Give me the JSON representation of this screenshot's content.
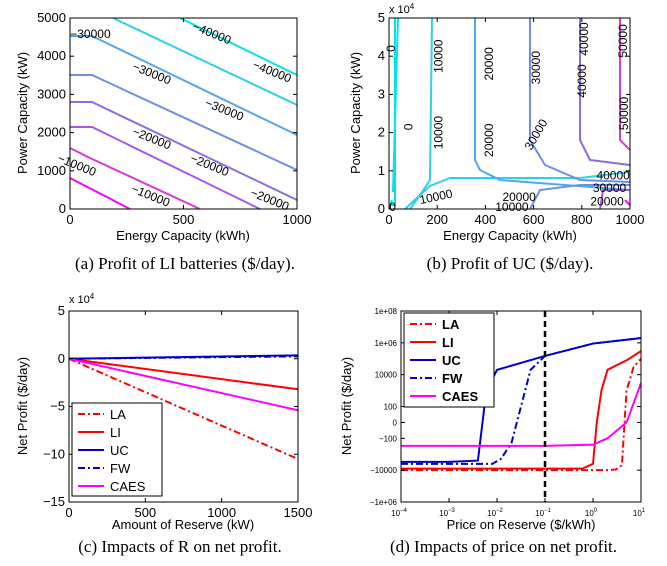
{
  "captions": [
    "(a)  Profit of LI batteries ($/day).",
    "(b)  Profit of UC ($/day).",
    "(c)  Impacts of R on net profit.",
    "(d)  Impacts of price on net profit."
  ],
  "chart_data": [
    {
      "type": "contour",
      "title": "",
      "xlabel": "Energy Capacity (kWh)",
      "ylabel": "Power Capacity (kW)",
      "xlim": [
        0,
        1000
      ],
      "ylim": [
        0,
        5000
      ],
      "xticks": [
        "0",
        "500",
        "1000"
      ],
      "yticks": [
        "0",
        "1000",
        "2000",
        "3000",
        "4000",
        "5000"
      ],
      "contour_labels": [
        {
          "text": "−10000",
          "x": 30,
          "y": 1150,
          "rot": 22
        },
        {
          "text": "−10000",
          "x": 355,
          "y": 350,
          "rot": 22
        },
        {
          "text": "−20000",
          "x": 360,
          "y": 1850,
          "rot": 22
        },
        {
          "text": "−20000",
          "x": 615,
          "y": 1150,
          "rot": 22
        },
        {
          "text": "−20000",
          "x": 880,
          "y": 250,
          "rot": 22
        },
        {
          "text": "−30000",
          "x": 90,
          "y": 4580,
          "rot": 0
        },
        {
          "text": "−30000",
          "x": 360,
          "y": 3550,
          "rot": 22
        },
        {
          "text": "−30000",
          "x": 680,
          "y": 2600,
          "rot": 22
        },
        {
          "text": "−40000",
          "x": 625,
          "y": 4600,
          "rot": 22
        },
        {
          "text": "−40000",
          "x": 890,
          "y": 3600,
          "rot": 22
        }
      ]
    },
    {
      "type": "contour",
      "title": "",
      "xlabel": "Energy Capacity (kWh)",
      "ylabel": "Power Capacity (kW)",
      "xlim": [
        0,
        1000
      ],
      "ylim": [
        0,
        50000
      ],
      "y_multiplier": "x 10",
      "y_exponent": "4",
      "xticks": [
        "0",
        "200",
        "400",
        "600",
        "800",
        "1000"
      ],
      "yticks": [
        "0",
        "1",
        "2",
        "3",
        "4",
        "5"
      ],
      "contour_labels": [
        {
          "text": "0",
          "x": 8,
          "y": 42000,
          "rot": -90
        },
        {
          "text": "0",
          "x": 80,
          "y": 21500,
          "rot": -90
        },
        {
          "text": "0",
          "x": 15,
          "y": 500,
          "rot": 0
        },
        {
          "text": "10000",
          "x": 205,
          "y": 40000,
          "rot": -90
        },
        {
          "text": "10000",
          "x": 205,
          "y": 20000,
          "rot": -90
        },
        {
          "text": "10000",
          "x": 195,
          "y": 3200,
          "rot": -12
        },
        {
          "text": "10000",
          "x": 510,
          "y": 500,
          "rot": 0
        },
        {
          "text": "20000",
          "x": 415,
          "y": 38000,
          "rot": -90
        },
        {
          "text": "20000",
          "x": 415,
          "y": 18000,
          "rot": -90
        },
        {
          "text": "20000",
          "x": 540,
          "y": 3100,
          "rot": 0
        },
        {
          "text": "20000",
          "x": 905,
          "y": 2000,
          "rot": 0
        },
        {
          "text": "30000",
          "x": 610,
          "y": 37000,
          "rot": -90
        },
        {
          "text": "30000",
          "x": 610,
          "y": 19500,
          "rot": -60
        },
        {
          "text": "30000",
          "x": 915,
          "y": 5500,
          "rot": 0
        },
        {
          "text": "40000",
          "x": 810,
          "y": 44500,
          "rot": -90
        },
        {
          "text": "40000",
          "x": 800,
          "y": 33500,
          "rot": -90
        },
        {
          "text": "40000",
          "x": 930,
          "y": 8800,
          "rot": 0
        },
        {
          "text": "50000",
          "x": 970,
          "y": 44000,
          "rot": -90
        },
        {
          "text": "50000",
          "x": 975,
          "y": 25000,
          "rot": -90
        }
      ]
    },
    {
      "type": "line",
      "title": "",
      "xlabel": "Amount of Reserve (kW)",
      "ylabel": "Net Profit ($/day)",
      "xlim": [
        0,
        1500
      ],
      "ylim": [
        -150000,
        50000
      ],
      "y_multiplier": "x 10",
      "y_exponent": "4",
      "xticks": [
        "0",
        "500",
        "1000",
        "1500"
      ],
      "yticks": [
        "−15",
        "−10",
        "−5",
        "0",
        "5"
      ],
      "x": [
        0,
        1500
      ],
      "series": [
        {
          "name": "LA",
          "color": "#ff0000",
          "dash": "dashdot",
          "values": [
            0,
            -105000
          ]
        },
        {
          "name": "LI",
          "color": "#ff0000",
          "dash": "solid",
          "values": [
            0,
            -32000
          ]
        },
        {
          "name": "UC",
          "color": "#0000cc",
          "dash": "solid",
          "values": [
            0,
            3500
          ]
        },
        {
          "name": "FW",
          "color": "#0000cc",
          "dash": "dashdot",
          "values": [
            0,
            2500
          ]
        },
        {
          "name": "CAES",
          "color": "#ff00ff",
          "dash": "solid",
          "values": [
            0,
            -54000
          ]
        }
      ]
    },
    {
      "type": "line",
      "title": "",
      "xlabel": "Price on Reserve ($/kWh)",
      "ylabel": "Net Profit ($/day)",
      "xscale": "log",
      "yscale": "symlog",
      "xlim": [
        0.0001,
        10
      ],
      "yticks": [
        "−1e+06",
        "−10000",
        "−100",
        "0",
        "100",
        "10000",
        "1e+06",
        "1e+08"
      ],
      "xticks": [
        "10",
        "10",
        "10",
        "10",
        "10",
        "10"
      ],
      "xtick_exponents": [
        "−4",
        "−3",
        "−2",
        "−1",
        "0",
        "1"
      ],
      "vline": {
        "x": 0.1,
        "style": "dashed",
        "color": "#000000"
      },
      "series": [
        {
          "name": "LA",
          "color": "#ff0000",
          "dash": "dashdot",
          "x": [
            0.0001,
            1,
            2,
            3,
            4,
            5,
            7,
            10
          ],
          "values": [
            -10000,
            -10000,
            -9900,
            -9000,
            -5000,
            1000,
            30000,
            100000
          ]
        },
        {
          "name": "LI",
          "color": "#ff0000",
          "dash": "solid",
          "x": [
            0.0001,
            0.6,
            1,
            1.2,
            1.5,
            2,
            5,
            10
          ],
          "values": [
            -8000,
            -8000,
            -4000,
            0,
            1000,
            20000,
            80000,
            300000
          ]
        },
        {
          "name": "UC",
          "color": "#0000cc",
          "dash": "solid",
          "x": [
            0.0001,
            0.001,
            0.004,
            0.006,
            0.01,
            0.1,
            1,
            10
          ],
          "values": [
            -3000,
            -3000,
            -2500,
            1000,
            20000,
            150000,
            900000,
            2000000
          ]
        },
        {
          "name": "FW",
          "color": "#0000cc",
          "dash": "dashdot",
          "x": [
            0.0001,
            0.008,
            0.012,
            0.02,
            0.05,
            0.1,
            1,
            10
          ],
          "values": [
            -4000,
            -4000,
            -2000,
            -200,
            20000,
            150000,
            900000,
            2000000
          ]
        },
        {
          "name": "CAES",
          "color": "#ff00ff",
          "dash": "solid",
          "x": [
            0.0001,
            0.1,
            1,
            2,
            5,
            10
          ],
          "values": [
            -300,
            -300,
            -250,
            -100,
            0,
            3000
          ]
        }
      ]
    }
  ]
}
